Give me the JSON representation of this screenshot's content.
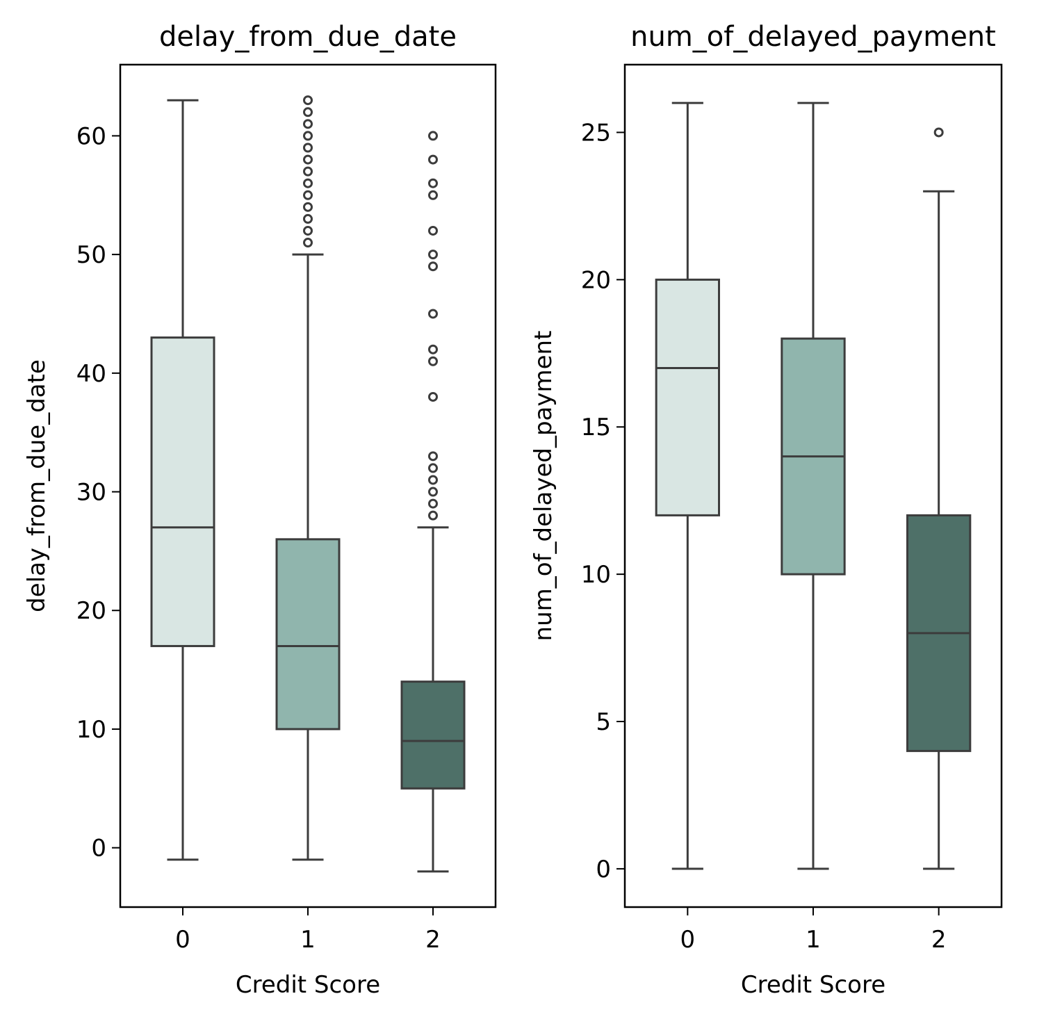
{
  "chart_data": [
    {
      "type": "box",
      "title": "delay_from_due_date",
      "xlabel": "Credit Score",
      "ylabel": "delay_from_due_date",
      "ylim": [
        -5,
        66
      ],
      "yticks": [
        0,
        10,
        20,
        30,
        40,
        50,
        60
      ],
      "categories": [
        "0",
        "1",
        "2"
      ],
      "boxes": [
        {
          "category": "0",
          "whisker_low": -1,
          "q1": 17,
          "median": 27,
          "q3": 43,
          "whisker_high": 63,
          "outliers": [],
          "color": "#d9e6e3"
        },
        {
          "category": "1",
          "whisker_low": -1,
          "q1": 10,
          "median": 17,
          "q3": 26,
          "whisker_high": 50,
          "outliers": [
            51,
            52,
            53,
            54,
            55,
            56,
            57,
            58,
            59,
            60,
            61,
            62,
            63
          ],
          "color": "#90b5ad"
        },
        {
          "category": "2",
          "whisker_low": -2,
          "q1": 5,
          "median": 9,
          "q3": 14,
          "whisker_high": 27,
          "outliers": [
            28,
            29,
            30,
            31,
            32,
            33,
            38,
            41,
            42,
            45,
            49,
            50,
            52,
            55,
            56,
            58,
            60
          ],
          "color": "#4e7068"
        }
      ],
      "grid": false
    },
    {
      "type": "box",
      "title": "num_of_delayed_payment",
      "xlabel": "Credit Score",
      "ylabel": "num_of_delayed_payment",
      "ylim": [
        -1.3,
        27.3
      ],
      "yticks": [
        0,
        5,
        10,
        15,
        20,
        25
      ],
      "categories": [
        "0",
        "1",
        "2"
      ],
      "boxes": [
        {
          "category": "0",
          "whisker_low": 0,
          "q1": 12,
          "median": 17,
          "q3": 20,
          "whisker_high": 26,
          "outliers": [],
          "color": "#d9e6e3"
        },
        {
          "category": "1",
          "whisker_low": 0,
          "q1": 10,
          "median": 14,
          "q3": 18,
          "whisker_high": 26,
          "outliers": [],
          "color": "#90b5ad"
        },
        {
          "category": "2",
          "whisker_low": 0,
          "q1": 4,
          "median": 8,
          "q3": 12,
          "whisker_high": 23,
          "outliers": [
            25
          ],
          "color": "#4e7068"
        }
      ],
      "grid": false
    }
  ]
}
